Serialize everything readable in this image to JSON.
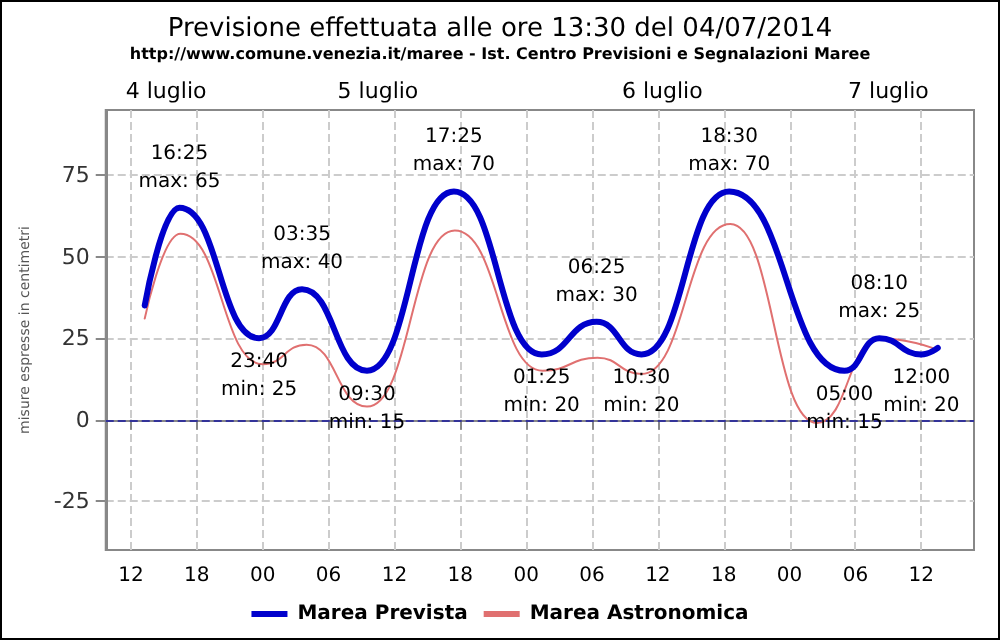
{
  "chart_data": {
    "type": "line",
    "title": "Previsione effettuata alle ore 13:30 del 04/07/2014",
    "subtitle": "http://www.comune.venezia.it/maree - Ist. Centro Previsioni e Segnalazioni Maree",
    "ylabel": "misure espresse in centimetri",
    "xlim": [
      "2014-07-04T09:42",
      "2014-07-07T16:48"
    ],
    "xticks": [
      {
        "value": "2014-07-04T12:00",
        "label": "12"
      },
      {
        "value": "2014-07-04T18:00",
        "label": "18"
      },
      {
        "value": "2014-07-05T00:00",
        "label": "00"
      },
      {
        "value": "2014-07-05T06:00",
        "label": "06"
      },
      {
        "value": "2014-07-05T12:00",
        "label": "12"
      },
      {
        "value": "2014-07-05T18:00",
        "label": "18"
      },
      {
        "value": "2014-07-06T00:00",
        "label": "00"
      },
      {
        "value": "2014-07-06T06:00",
        "label": "06"
      },
      {
        "value": "2014-07-06T12:00",
        "label": "12"
      },
      {
        "value": "2014-07-06T18:00",
        "label": "18"
      },
      {
        "value": "2014-07-07T00:00",
        "label": "00"
      },
      {
        "value": "2014-07-07T06:00",
        "label": "06"
      },
      {
        "value": "2014-07-07T12:00",
        "label": "12"
      }
    ],
    "x2lim": [
      "2014-07-04T09:42",
      "2014-07-07T16:48"
    ],
    "x2ticks": [
      {
        "value": "2014-07-04T15:12",
        "label": "4 luglio"
      },
      {
        "value": "2014-07-05T10:30",
        "label": "5 luglio"
      },
      {
        "value": "2014-07-06T12:24",
        "label": "6 luglio"
      },
      {
        "value": "2014-07-07T09:00",
        "label": "7 luglio"
      }
    ],
    "ylim": [
      -40,
      95
    ],
    "yticks": [
      -25,
      0,
      25,
      50,
      75
    ],
    "grid": true,
    "legend": "bottom",
    "marker": "none",
    "series": [
      {
        "name": "Marea Prevista",
        "color": "#0000cc",
        "x": [
          "2014-07-04T13:15",
          "2014-07-04T16:25",
          "2014-07-04T23:40",
          "2014-07-05T03:35",
          "2014-07-05T09:30",
          "2014-07-05T17:25",
          "2014-07-06T01:25",
          "2014-07-06T06:25",
          "2014-07-06T10:30",
          "2014-07-06T18:30",
          "2014-07-07T05:00",
          "2014-07-07T08:10",
          "2014-07-07T12:00",
          "2014-07-07T13:30"
        ],
        "values": [
          35,
          65,
          25,
          40,
          15,
          70,
          20,
          30,
          20,
          70,
          15,
          25,
          20,
          22
        ]
      },
      {
        "name": "Marea Astronomica",
        "color": "#e07070",
        "x": [
          "2014-07-04T13:15",
          "2014-07-04T16:30",
          "2014-07-05T00:00",
          "2014-07-05T04:00",
          "2014-07-05T09:30",
          "2014-07-05T17:30",
          "2014-07-06T01:30",
          "2014-07-06T06:30",
          "2014-07-06T10:30",
          "2014-07-06T18:36",
          "2014-07-07T02:30",
          "2014-07-07T08:12",
          "2014-07-07T13:00"
        ],
        "values": [
          31,
          57,
          17,
          23,
          4,
          58,
          15,
          19,
          14,
          60,
          -1,
          25,
          22
        ]
      }
    ],
    "ref_lines": [
      {
        "axis": "y",
        "value": 0,
        "color": "#333399",
        "line_style": "dashed"
      }
    ],
    "annotations": [
      {
        "text": "16:25\nmax: 65",
        "x": "2014-07-04T16:25",
        "y": 65
      },
      {
        "text": "23:40\nmin: 25",
        "x": "2014-07-04T23:40",
        "y": 25
      },
      {
        "text": "03:35\nmax: 40",
        "x": "2014-07-05T03:35",
        "y": 40
      },
      {
        "text": "09:30\nmin: 15",
        "x": "2014-07-05T09:30",
        "y": 15
      },
      {
        "text": "17:25\nmax: 70",
        "x": "2014-07-05T17:25",
        "y": 70
      },
      {
        "text": "01:25\nmin: 20",
        "x": "2014-07-06T01:25",
        "y": 20
      },
      {
        "text": "06:25\nmax: 30",
        "x": "2014-07-06T06:25",
        "y": 30
      },
      {
        "text": "10:30\nmin: 20",
        "x": "2014-07-06T10:30",
        "y": 20
      },
      {
        "text": "18:30\nmax: 70",
        "x": "2014-07-06T18:30",
        "y": 70
      },
      {
        "text": "05:00\nmin: 15",
        "x": "2014-07-07T05:00",
        "y": 15
      },
      {
        "text": "08:10\nmax: 25",
        "x": "2014-07-07T08:10",
        "y": 25
      },
      {
        "text": "12:00\nmin: 20",
        "x": "2014-07-07T12:00",
        "y": 20
      }
    ]
  }
}
